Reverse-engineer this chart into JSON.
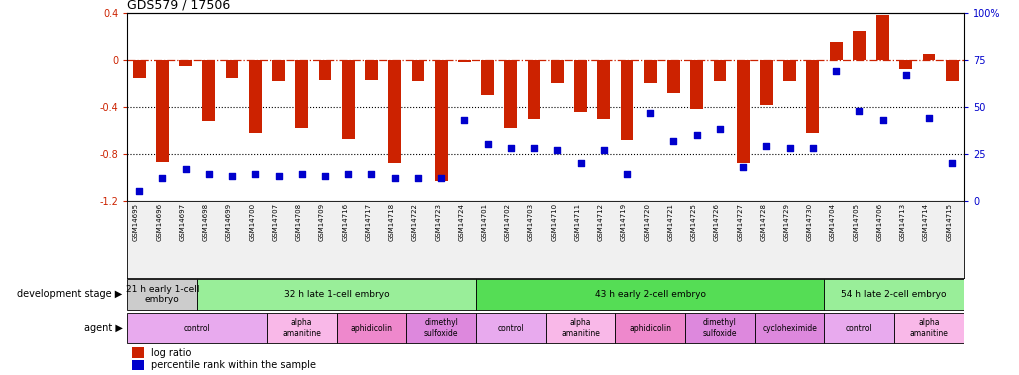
{
  "title": "GDS579 / 17506",
  "samples": [
    "GSM14695",
    "GSM14696",
    "GSM14697",
    "GSM14698",
    "GSM14699",
    "GSM14700",
    "GSM14707",
    "GSM14708",
    "GSM14709",
    "GSM14716",
    "GSM14717",
    "GSM14718",
    "GSM14722",
    "GSM14723",
    "GSM14724",
    "GSM14701",
    "GSM14702",
    "GSM14703",
    "GSM14710",
    "GSM14711",
    "GSM14712",
    "GSM14719",
    "GSM14720",
    "GSM14721",
    "GSM14725",
    "GSM14726",
    "GSM14727",
    "GSM14728",
    "GSM14729",
    "GSM14730",
    "GSM14704",
    "GSM14705",
    "GSM14706",
    "GSM14713",
    "GSM14714",
    "GSM14715"
  ],
  "log_ratio": [
    -0.15,
    -0.87,
    -0.05,
    -0.52,
    -0.15,
    -0.62,
    -0.18,
    -0.58,
    -0.17,
    -0.67,
    -0.17,
    -0.88,
    -0.18,
    -1.03,
    -0.02,
    -0.3,
    -0.58,
    -0.5,
    -0.2,
    -0.44,
    -0.5,
    -0.68,
    -0.2,
    -0.28,
    -0.42,
    -0.18,
    -0.88,
    -0.38,
    -0.18,
    -0.62,
    0.15,
    0.25,
    0.38,
    -0.08,
    0.05,
    -0.18
  ],
  "percentile": [
    5,
    12,
    17,
    14,
    13,
    14,
    13,
    14,
    13,
    14,
    14,
    12,
    12,
    12,
    43,
    30,
    28,
    28,
    27,
    20,
    27,
    14,
    47,
    32,
    35,
    38,
    18,
    29,
    28,
    28,
    69,
    48,
    43,
    67,
    44,
    20
  ],
  "ylim_left": [
    -1.2,
    0.4
  ],
  "ylim_right": [
    0,
    100
  ],
  "bar_color": "#cc2200",
  "dot_color": "#0000cc",
  "hline_color": "#cc2200",
  "gridline_color": "#000000",
  "development_stages": [
    {
      "label": "21 h early 1-cell\nembryo",
      "start": 0,
      "end": 3,
      "color": "#cccccc"
    },
    {
      "label": "32 h late 1-cell embryo",
      "start": 3,
      "end": 15,
      "color": "#99ee99"
    },
    {
      "label": "43 h early 2-cell embryo",
      "start": 15,
      "end": 30,
      "color": "#55dd55"
    },
    {
      "label": "54 h late 2-cell embryo",
      "start": 30,
      "end": 36,
      "color": "#99ee99"
    }
  ],
  "agents": [
    {
      "label": "control",
      "start": 0,
      "end": 6,
      "color": "#e8aaee"
    },
    {
      "label": "alpha\namanitine",
      "start": 6,
      "end": 9,
      "color": "#f9b8e8"
    },
    {
      "label": "aphidicolin",
      "start": 9,
      "end": 12,
      "color": "#ee88cc"
    },
    {
      "label": "dimethyl\nsulfoxide",
      "start": 12,
      "end": 15,
      "color": "#dd88dd"
    },
    {
      "label": "control",
      "start": 15,
      "end": 18,
      "color": "#e8aaee"
    },
    {
      "label": "alpha\namanitine",
      "start": 18,
      "end": 21,
      "color": "#f9b8e8"
    },
    {
      "label": "aphidicolin",
      "start": 21,
      "end": 24,
      "color": "#ee88cc"
    },
    {
      "label": "dimethyl\nsulfoxide",
      "start": 24,
      "end": 27,
      "color": "#dd88dd"
    },
    {
      "label": "cycloheximide",
      "start": 27,
      "end": 30,
      "color": "#dd88dd"
    },
    {
      "label": "control",
      "start": 30,
      "end": 33,
      "color": "#e8aaee"
    },
    {
      "label": "alpha\namanitine",
      "start": 33,
      "end": 36,
      "color": "#f9b8e8"
    }
  ],
  "dev_stage_label": "development stage",
  "agent_label": "agent",
  "legend_items": [
    {
      "label": "log ratio",
      "color": "#cc2200"
    },
    {
      "label": "percentile rank within the sample",
      "color": "#0000cc"
    }
  ]
}
